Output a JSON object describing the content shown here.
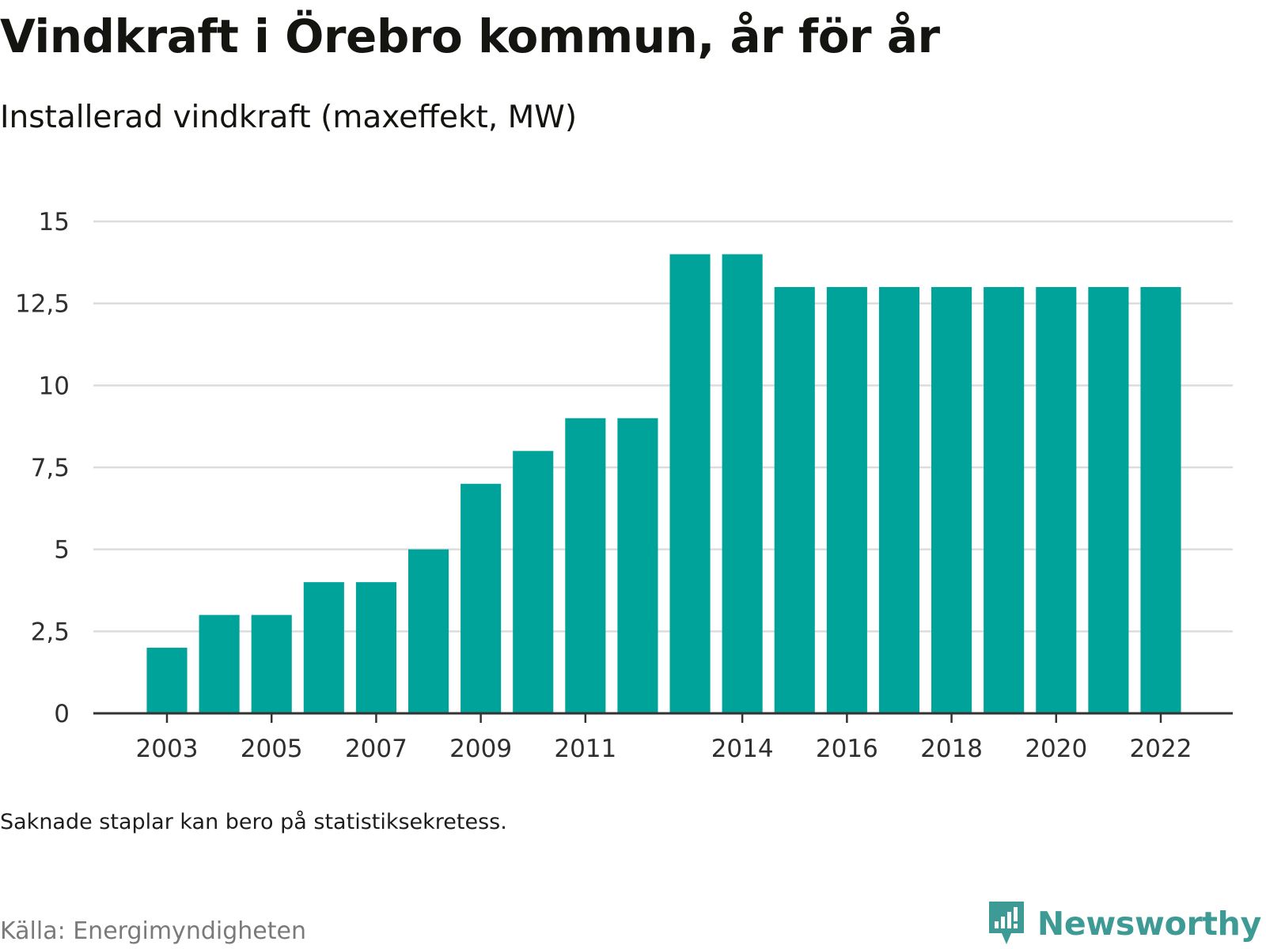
{
  "title": "Vindkraft i Örebro kommun, år för år",
  "subtitle": "Installerad vindkraft (maxeffekt, MW)",
  "note": "Saknade staplar kan bero på statistiksekretess.",
  "source": "Källa: Energimyndigheten",
  "brand": {
    "name": "Newsworthy",
    "icon": "newsworthy-logo-icon"
  },
  "colors": {
    "bar": "#00a39a",
    "grid": "#dcdcdc",
    "axis": "#333333",
    "brand": "#3e9a94"
  },
  "chart_data": {
    "type": "bar",
    "categories": [
      "2003",
      "2004",
      "2005",
      "2006",
      "2007",
      "2008",
      "2009",
      "2010",
      "2011",
      "2012",
      "2013",
      "2014",
      "2015",
      "2016",
      "2017",
      "2018",
      "2019",
      "2020",
      "2021",
      "2022"
    ],
    "values": [
      2,
      3,
      3,
      4,
      4,
      5,
      7,
      8,
      9,
      9,
      14,
      14,
      13,
      13,
      13,
      13,
      13,
      13,
      13,
      13
    ],
    "x_tick_labels": [
      "2003",
      "2005",
      "2007",
      "2009",
      "2011",
      "2014",
      "2016",
      "2018",
      "2020",
      "2022"
    ],
    "y_ticks": [
      0,
      2.5,
      5,
      7.5,
      10,
      12.5,
      15
    ],
    "y_tick_labels": [
      "0",
      "2,5",
      "5",
      "7,5",
      "10",
      "12,5",
      "15"
    ],
    "ylim": [
      0,
      15
    ],
    "grid": true,
    "xlabel": "",
    "ylabel": ""
  }
}
